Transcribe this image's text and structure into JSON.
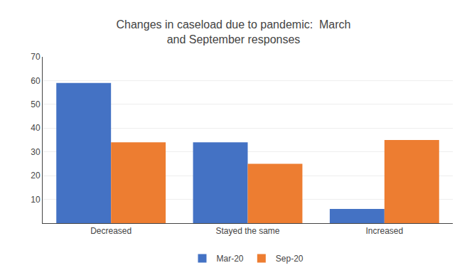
{
  "chart_data": {
    "type": "bar",
    "title": "Changes in caseload due to pandemic:  March\nand September responses",
    "categories": [
      "Decreased",
      "Stayed the same",
      "Increased"
    ],
    "series": [
      {
        "name": "Mar-20",
        "color": "#4472C4",
        "values": [
          59,
          34,
          6
        ]
      },
      {
        "name": "Sep-20",
        "color": "#ED7D31",
        "values": [
          34,
          25,
          35
        ]
      }
    ],
    "ylim": [
      0,
      70
    ],
    "yticks": [
      10,
      20,
      30,
      40,
      50,
      60,
      70
    ],
    "grid": true,
    "legend": "bottom"
  }
}
